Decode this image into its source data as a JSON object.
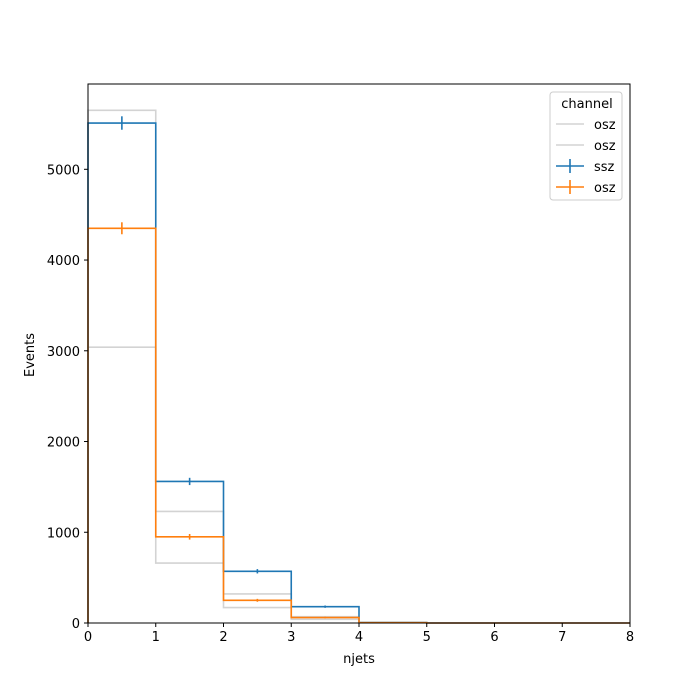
{
  "chart_data": {
    "type": "line",
    "title": "",
    "xlabel": "njets",
    "ylabel": "Events",
    "xlim": [
      0,
      8
    ],
    "ylim": [
      0,
      5940
    ],
    "xticks": [
      0,
      1,
      2,
      3,
      4,
      5,
      6,
      7,
      8
    ],
    "yticks": [
      0,
      1000,
      2000,
      3000,
      4000,
      5000
    ],
    "bin_edges": [
      0,
      1,
      2,
      3,
      4,
      5,
      6,
      7,
      8
    ],
    "legend": {
      "title": "channel",
      "position": "top-right"
    },
    "series": [
      {
        "name": "osz",
        "color": "#d3d3d3",
        "style": "step",
        "values": [
          5650,
          660,
          170,
          40,
          2,
          0,
          0,
          0
        ]
      },
      {
        "name": "osz",
        "color": "#d3d3d3",
        "style": "step",
        "values": [
          3040,
          1230,
          320,
          70,
          3,
          0,
          0,
          0
        ]
      },
      {
        "name": "ssz",
        "color": "#1f77b4",
        "style": "step-errorbar",
        "values": [
          5510,
          1560,
          570,
          180,
          5,
          0,
          0,
          0
        ],
        "errors": [
          74,
          40,
          24,
          13,
          2,
          0,
          0,
          0
        ]
      },
      {
        "name": "osz",
        "color": "#ff7f0e",
        "style": "step-errorbar",
        "values": [
          4350,
          950,
          250,
          60,
          3,
          0,
          0,
          0
        ],
        "errors": [
          66,
          31,
          16,
          8,
          2,
          0,
          0,
          0
        ]
      }
    ]
  }
}
